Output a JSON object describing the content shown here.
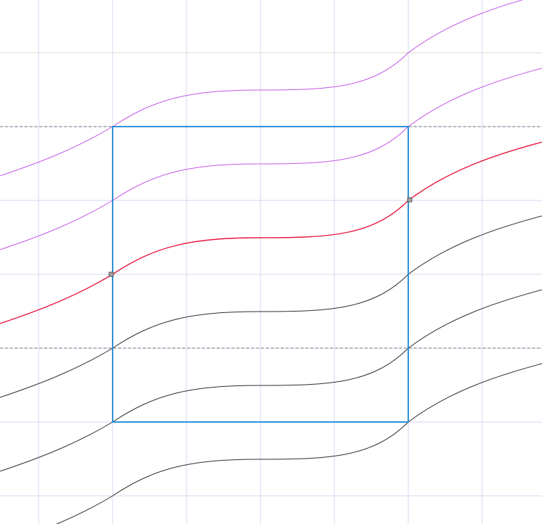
{
  "canvas": {
    "background": "#ffffff",
    "grid_color": "#d6d6f2",
    "guide_color": "#6a6a7a",
    "page_border_color": "#e2d9c8"
  },
  "selection": {
    "stroke_color": "#2a8fd8",
    "handle_color": "#a0a0a0"
  },
  "curves": [
    {
      "name": "curve-1",
      "color": "#c455e6",
      "role": "guide-copy"
    },
    {
      "name": "curve-2",
      "color": "#c455e6",
      "role": "guide-copy"
    },
    {
      "name": "curve-3",
      "color": "#e8143c",
      "role": "selected"
    },
    {
      "name": "curve-4",
      "color": "#2b2b2b",
      "role": "copy"
    },
    {
      "name": "curve-5",
      "color": "#2b2b2b",
      "role": "copy"
    },
    {
      "name": "curve-6",
      "color": "#2b2b2b",
      "role": "copy"
    }
  ]
}
